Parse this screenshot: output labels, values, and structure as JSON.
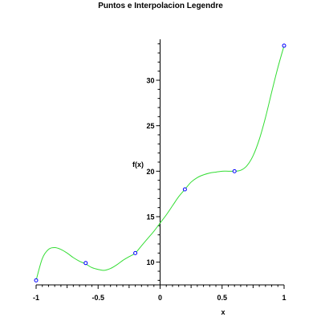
{
  "chart_data": {
    "type": "line",
    "title": "Puntos e Interpolacion Legendre",
    "xlabel": "x",
    "ylabel": "f(x)",
    "xlim": [
      -1,
      1
    ],
    "ylim": [
      7.5,
      34.5
    ],
    "x_ticks": [
      -1,
      -0.5,
      0,
      0.5,
      1
    ],
    "x_tick_labels": [
      "-1",
      "-0.5",
      "0",
      "0.5",
      "1"
    ],
    "y_ticks": [
      10,
      15,
      20,
      25,
      30
    ],
    "y_tick_labels": [
      "10",
      "15",
      "20",
      "25",
      "30"
    ],
    "grid": false,
    "series": [
      {
        "kind": "line",
        "color": "#33dd33",
        "x": [
          -1,
          -0.95,
          -0.9,
          -0.85,
          -0.8,
          -0.75,
          -0.7,
          -0.65,
          -0.6,
          -0.55,
          -0.5,
          -0.45,
          -0.4,
          -0.35,
          -0.3,
          -0.25,
          -0.2,
          -0.15,
          -0.1,
          -0.05,
          0,
          0.05,
          0.1,
          0.15,
          0.2,
          0.25,
          0.3,
          0.35,
          0.4,
          0.45,
          0.5,
          0.55,
          0.6,
          0.65,
          0.7,
          0.75,
          0.8,
          0.85,
          0.9,
          0.95,
          1
        ],
        "y": [
          8.0,
          10.4,
          11.4,
          11.6,
          11.4,
          11.0,
          10.5,
          10.1,
          9.8,
          9.4,
          9.2,
          9.1,
          9.3,
          9.7,
          10.2,
          10.6,
          11.0,
          11.8,
          12.6,
          13.4,
          14.3,
          15.2,
          16.2,
          17.2,
          18.0,
          18.8,
          19.3,
          19.6,
          19.8,
          19.9,
          20.0,
          20.0,
          20.0,
          20.1,
          20.6,
          21.7,
          23.5,
          25.9,
          28.7,
          31.4,
          33.8
        ]
      },
      {
        "kind": "points",
        "color": "#0000ff",
        "x": [
          -1,
          -0.6,
          -0.2,
          0.2,
          0.6,
          1
        ],
        "y": [
          8.0,
          9.9,
          11.0,
          18.0,
          20.0,
          33.8
        ]
      }
    ]
  }
}
